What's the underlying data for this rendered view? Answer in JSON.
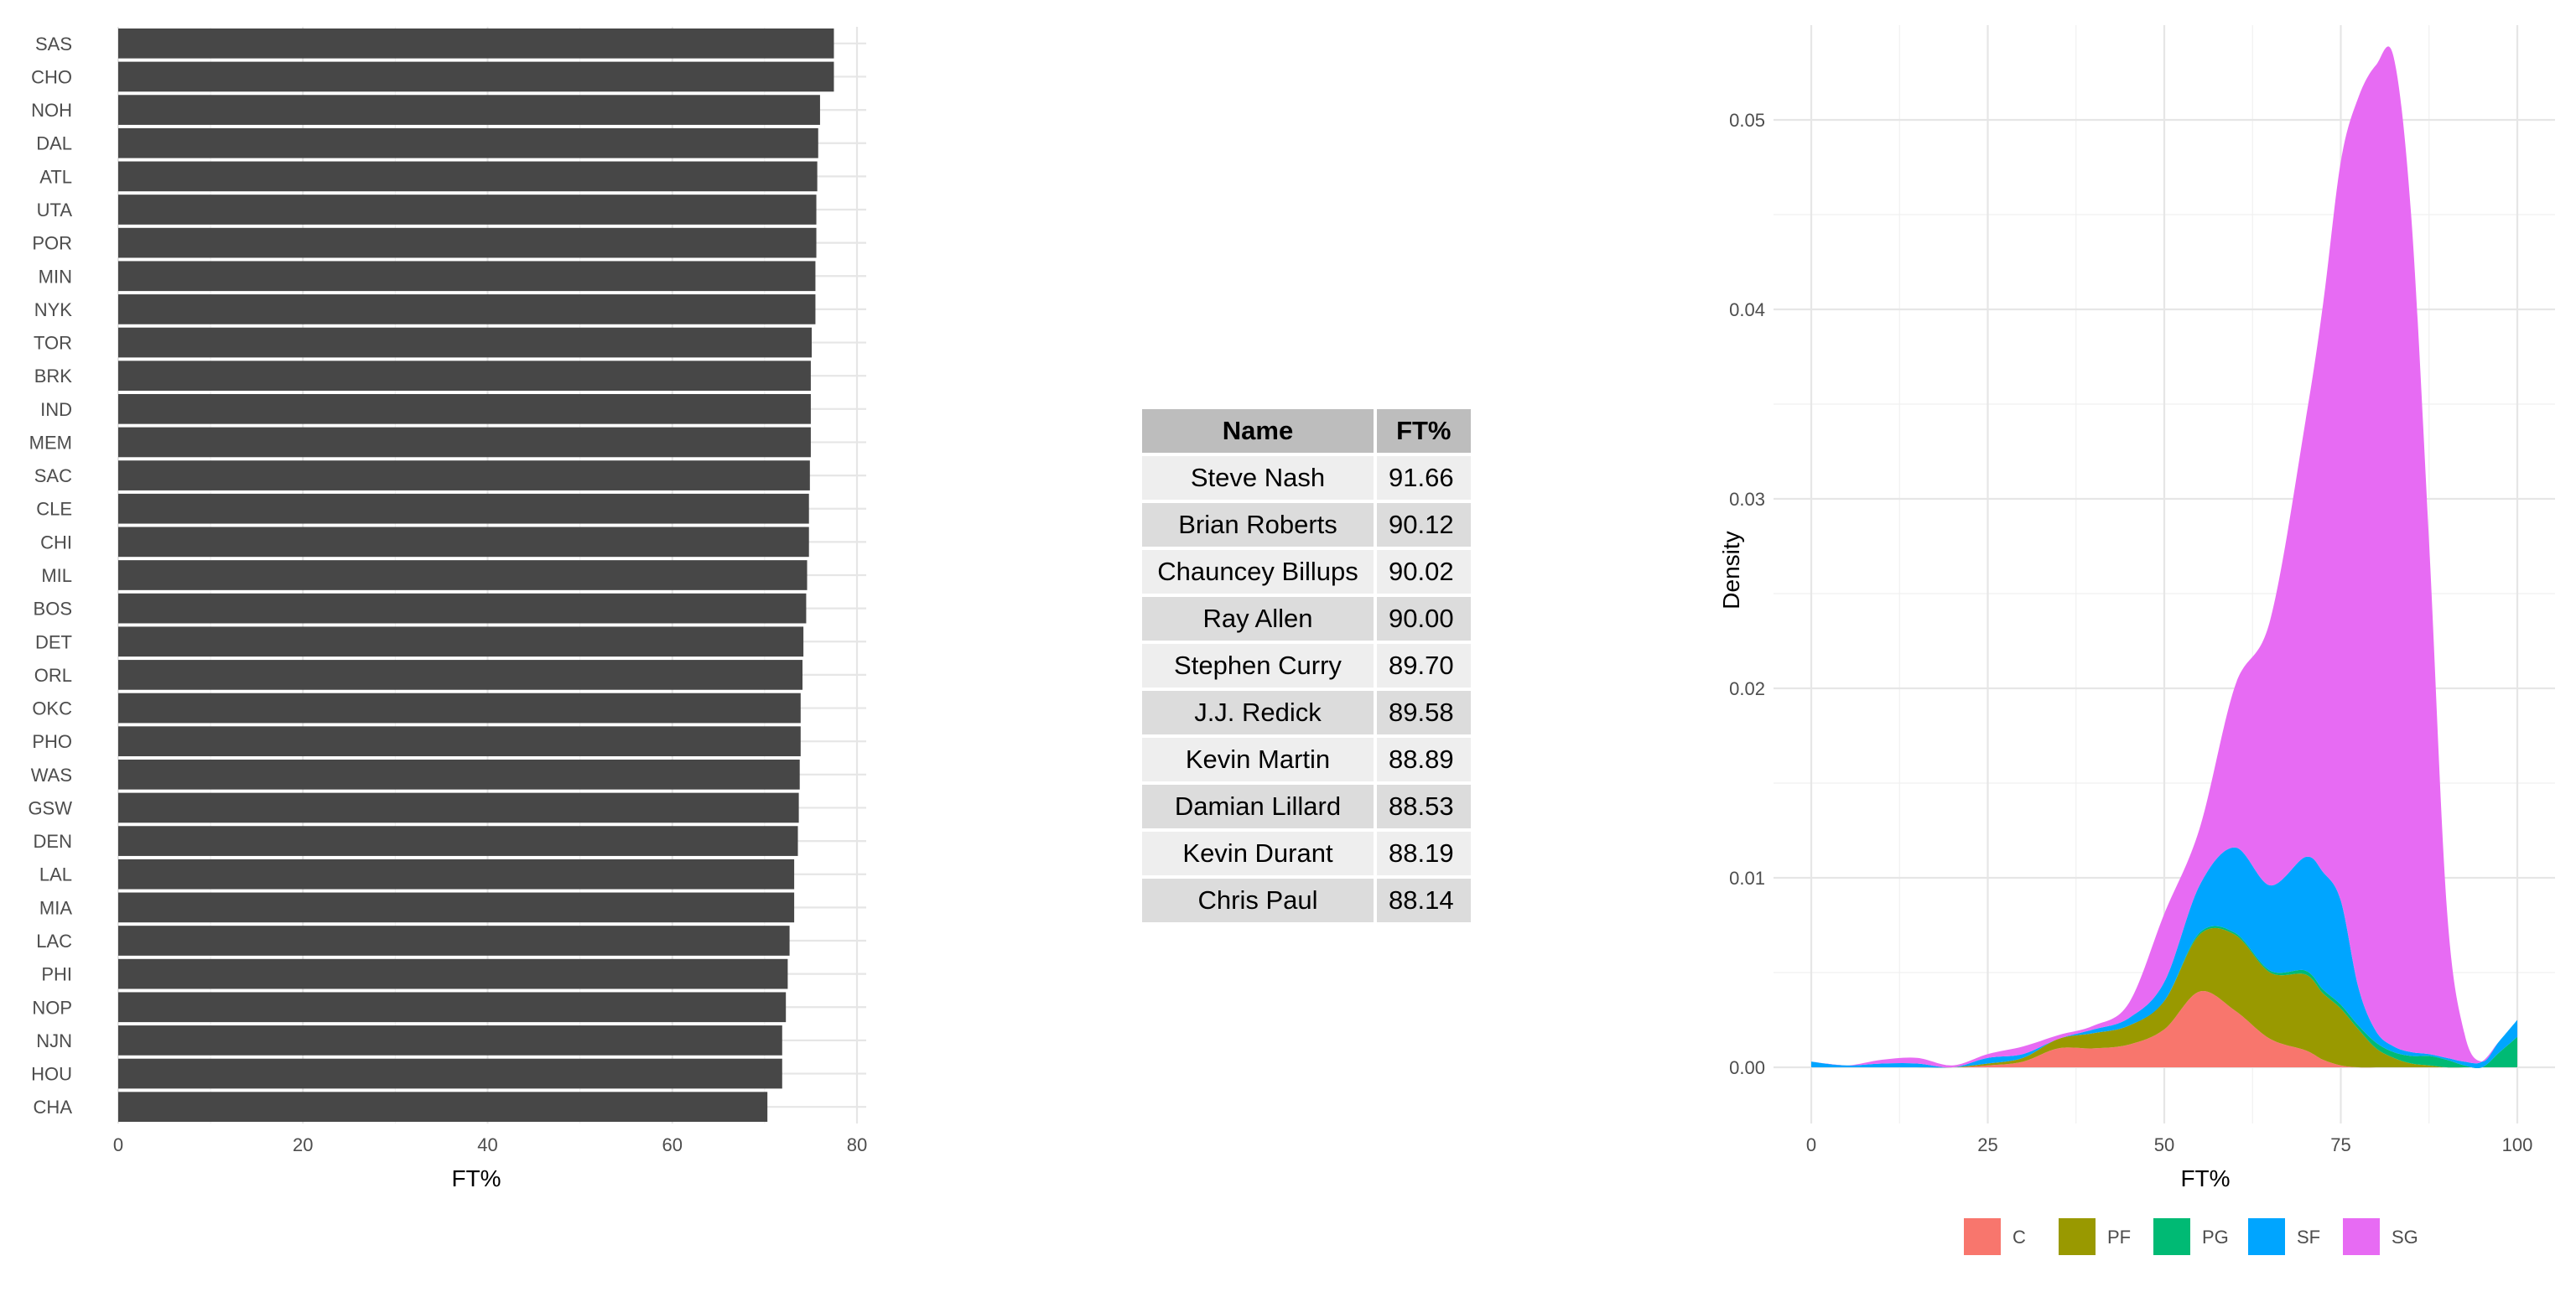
{
  "chart_data": [
    {
      "type": "bar",
      "orientation": "horizontal",
      "xlabel": "FT%",
      "ylabel": "",
      "xlim": [
        0,
        81
      ],
      "xticks": [
        0,
        20,
        40,
        60,
        80
      ],
      "grid": true,
      "bar_color": "#474747",
      "categories": [
        "SAS",
        "CHO",
        "NOH",
        "DAL",
        "ATL",
        "UTA",
        "POR",
        "MIN",
        "NYK",
        "TOR",
        "BRK",
        "IND",
        "MEM",
        "SAC",
        "CLE",
        "CHI",
        "MIL",
        "BOS",
        "DET",
        "ORL",
        "OKC",
        "PHO",
        "WAS",
        "GSW",
        "DEN",
        "LAL",
        "MIA",
        "LAC",
        "PHI",
        "NOP",
        "NJN",
        "HOU",
        "CHA"
      ],
      "values": [
        77.5,
        77.5,
        76.0,
        75.8,
        75.7,
        75.6,
        75.6,
        75.5,
        75.5,
        75.1,
        75.0,
        75.0,
        75.0,
        74.9,
        74.8,
        74.8,
        74.6,
        74.5,
        74.2,
        74.1,
        73.9,
        73.9,
        73.8,
        73.7,
        73.6,
        73.2,
        73.2,
        72.7,
        72.5,
        72.3,
        71.9,
        71.9,
        70.3
      ]
    },
    {
      "type": "table",
      "columns": [
        "Name",
        "FT%"
      ],
      "rows": [
        [
          "Steve Nash",
          "91.66"
        ],
        [
          "Brian Roberts",
          "90.12"
        ],
        [
          "Chauncey Billups",
          "90.02"
        ],
        [
          "Ray Allen",
          "90.00"
        ],
        [
          "Stephen Curry",
          "89.70"
        ],
        [
          "J.J. Redick",
          "89.58"
        ],
        [
          "Kevin Martin",
          "88.89"
        ],
        [
          "Damian Lillard",
          "88.53"
        ],
        [
          "Kevin Durant",
          "88.19"
        ],
        [
          "Chris Paul",
          "88.14"
        ]
      ]
    },
    {
      "type": "area",
      "subtype": "stacked-density",
      "xlabel": "FT%",
      "ylabel": "Density",
      "xlim": [
        0,
        100
      ],
      "ylim": [
        0,
        0.054
      ],
      "xticks": [
        0,
        25,
        50,
        75,
        100
      ],
      "yticks": [
        "0.00",
        "0.01",
        "0.02",
        "0.03",
        "0.04",
        "0.05"
      ],
      "grid": true,
      "legend_position": "bottom",
      "x": [
        0,
        5,
        10,
        15,
        20,
        25,
        30,
        35,
        40,
        45,
        50,
        55,
        60,
        65,
        70,
        72.5,
        75,
        77.5,
        80,
        82.5,
        85,
        87.5,
        90,
        92.5,
        95,
        97.5,
        100
      ],
      "series": [
        {
          "name": "C",
          "color": "#F8766D",
          "values": [
            0,
            0,
            0,
            0,
            0,
            0.0001,
            0.0003,
            0.001,
            0.001,
            0.0012,
            0.002,
            0.004,
            0.003,
            0.0015,
            0.0009,
            0.0004,
            0.0001,
            0,
            0,
            0,
            0,
            0,
            0,
            0,
            0,
            0,
            0
          ]
        },
        {
          "name": "PF",
          "color": "#999900",
          "values": [
            0,
            0,
            0,
            0,
            0,
            0.0001,
            0.0002,
            0.0005,
            0.0008,
            0.001,
            0.0015,
            0.003,
            0.004,
            0.0035,
            0.004,
            0.0035,
            0.003,
            0.002,
            0.001,
            0.0005,
            0.0002,
            0.0001,
            0,
            0,
            0,
            0,
            0
          ]
        },
        {
          "name": "PG",
          "color": "#00BA74",
          "values": [
            0,
            0,
            0,
            0,
            0,
            0,
            0,
            0,
            0,
            0,
            0,
            0.0001,
            0.0001,
            0.0001,
            0.0002,
            0.0002,
            0.0002,
            0.0002,
            0.0003,
            0.0003,
            0.0004,
            0.0005,
            0.0004,
            0.0001,
            0,
            0.0008,
            0.0016
          ]
        },
        {
          "name": "SF",
          "color": "#00A5FF",
          "values": [
            0.0003,
            0.0001,
            0.0002,
            0.0002,
            0,
            0.0003,
            0.0002,
            0,
            0.0002,
            0.0004,
            0.001,
            0.0025,
            0.0045,
            0.0045,
            0.006,
            0.0062,
            0.0055,
            0.002,
            0.0006,
            0.0003,
            0.0002,
            0.0001,
            0.0001,
            0.0002,
            0.0003,
            0.0006,
            0.0009
          ]
        },
        {
          "name": "SG",
          "color": "#E76BF3",
          "values": [
            0,
            0,
            0.0002,
            0.0003,
            0.0001,
            0.0002,
            0.0004,
            0.0002,
            0.0002,
            0.0008,
            0.0036,
            0.003,
            0.0085,
            0.014,
            0.023,
            0.03,
            0.039,
            0.047,
            0.051,
            0.0522,
            0.044,
            0.027,
            0.008,
            0.0015,
            0,
            0,
            0
          ]
        }
      ]
    }
  ]
}
